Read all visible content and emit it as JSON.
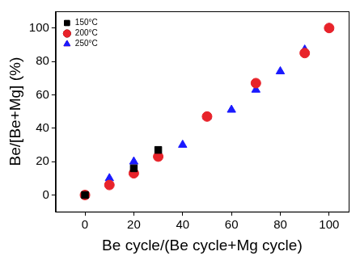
{
  "chart_data": {
    "type": "scatter",
    "x_label": "Be cycle/(Be cycle+Mg cycle)",
    "y_label": "Be/[Be+Mg] (%)",
    "xlim": [
      -12,
      108
    ],
    "xticks": [
      0,
      20,
      40,
      60,
      80,
      100
    ],
    "ylim": [
      -10,
      110
    ],
    "yticks": [
      0,
      20,
      40,
      60,
      80,
      100
    ],
    "grid": false,
    "legend": "upper left",
    "series": [
      {
        "name": "150°C",
        "color": "#000000",
        "marker": "square",
        "x": [
          0,
          20,
          30
        ],
        "values": [
          0,
          16,
          27
        ]
      },
      {
        "name": "200°C",
        "color": "#e8232a",
        "marker": "circle",
        "x": [
          0,
          10,
          20,
          30,
          50,
          70,
          90,
          100
        ],
        "values": [
          0,
          6,
          13,
          23,
          47,
          67,
          85,
          100
        ]
      },
      {
        "name": "250°C",
        "color": "#1a1aff",
        "marker": "triangle",
        "x": [
          0,
          10,
          20,
          40,
          50,
          60,
          70,
          80,
          90,
          100
        ],
        "values": [
          0,
          10,
          20,
          30,
          47,
          51,
          63,
          74,
          87,
          100
        ]
      }
    ]
  }
}
